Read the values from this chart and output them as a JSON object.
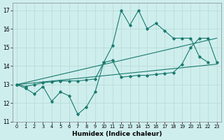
{
  "xlabel": "Humidex (Indice chaleur)",
  "background_color": "#ceeeed",
  "line_color": "#1a7a6e",
  "xlim": [
    -0.5,
    23.5
  ],
  "ylim": [
    11,
    17.4
  ],
  "yticks": [
    11,
    12,
    13,
    14,
    15,
    16,
    17
  ],
  "xticks": [
    0,
    1,
    2,
    3,
    4,
    5,
    6,
    7,
    8,
    9,
    10,
    11,
    12,
    13,
    14,
    15,
    16,
    17,
    18,
    19,
    20,
    21,
    22,
    23
  ],
  "line1_x": [
    0,
    1,
    2,
    3,
    4,
    5,
    6,
    7,
    8,
    9,
    10,
    11,
    12,
    13,
    14,
    15,
    16,
    17,
    18,
    19,
    20,
    21,
    22,
    23
  ],
  "line1_y": [
    13.0,
    12.8,
    12.5,
    12.9,
    12.1,
    12.6,
    12.4,
    11.4,
    11.8,
    12.6,
    14.2,
    15.1,
    17.0,
    16.2,
    17.0,
    16.0,
    16.3,
    15.9,
    15.5,
    15.5,
    15.5,
    14.5,
    14.2,
    null
  ],
  "line2_x": [
    0,
    1,
    2,
    3,
    4,
    5,
    6,
    7,
    8,
    9,
    10,
    11,
    12,
    13,
    14,
    15,
    16,
    17,
    18,
    19,
    20,
    21,
    22,
    23
  ],
  "line2_y": [
    13.0,
    12.9,
    13.0,
    13.1,
    13.15,
    13.2,
    13.2,
    13.2,
    13.25,
    13.3,
    14.2,
    14.3,
    13.4,
    13.45,
    13.5,
    13.5,
    13.55,
    13.6,
    13.65,
    14.1,
    15.0,
    15.5,
    15.5,
    14.2
  ],
  "ref_line1": [
    [
      0,
      13.0
    ],
    [
      23,
      15.5
    ]
  ],
  "ref_line2": [
    [
      0,
      13.0
    ],
    [
      23,
      14.1
    ]
  ]
}
